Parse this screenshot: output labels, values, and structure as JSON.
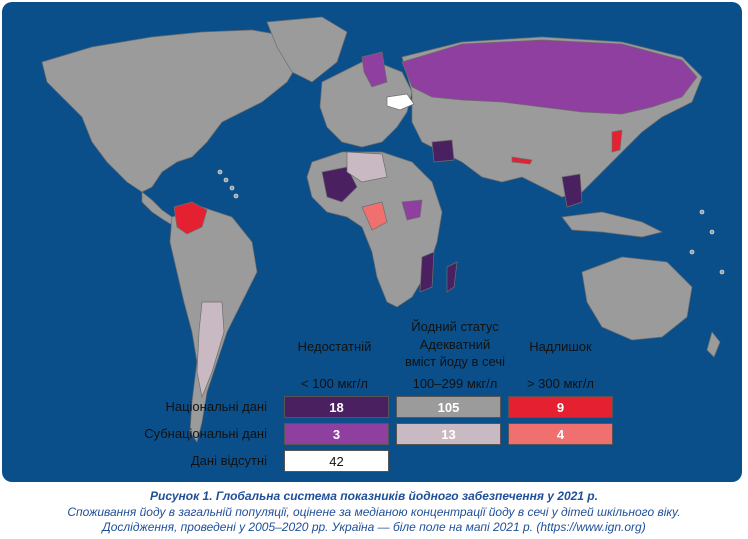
{
  "legend": {
    "status_title": "Йодний статус",
    "categories": [
      {
        "label": "Недостатній",
        "range": "< 100 мкг/л"
      },
      {
        "label": "Адекватний\nвміст йоду в сечі",
        "range": "100–299 мкг/л"
      },
      {
        "label": "Надлишок",
        "range": "> 300 мкг/л"
      }
    ],
    "rows": [
      {
        "label": "Національні дані",
        "values": [
          "18",
          "105",
          "9"
        ]
      },
      {
        "label": "Субнаціональні дані",
        "values": [
          "3",
          "13",
          "4"
        ]
      },
      {
        "label": "Дані відсутні",
        "values": [
          "42"
        ]
      }
    ],
    "colors": {
      "national_insufficient": "#4a2060",
      "national_adequate": "#9b9b9b",
      "national_excess": "#e52030",
      "subnational_insufficient": "#8e3fa0",
      "subnational_adequate": "#c9b9c2",
      "subnational_excess": "#f07070",
      "no_data": "#ffffff",
      "ocean": "#0b4f8a"
    }
  },
  "caption": {
    "title": "Рисунок 1.  Глобальна система показників йодного забезпечення у 2021 р.",
    "line2": "Споживання йоду в загальній популяції, оцінене за медіаною концентрації йоду в сечі у дітей шкільного віку.",
    "line3": "Дослідження, проведені у 2005–2020 рр. Україна — біле поле на мапі 2021 р. (https://www.ign.org)"
  }
}
